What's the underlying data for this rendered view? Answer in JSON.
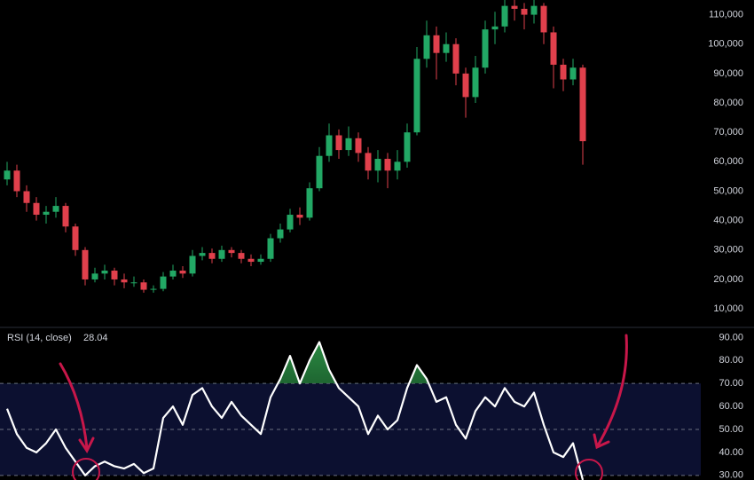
{
  "chart_data": [
    {
      "type": "candlestick",
      "open": [
        54000,
        57000,
        50000,
        46000,
        42000,
        43000,
        45000,
        38000,
        30000,
        20000,
        22000,
        23000,
        20000,
        19000,
        19000,
        16500,
        16800,
        21000,
        23000,
        22000,
        28000,
        29000,
        27000,
        30000,
        29000,
        27000,
        26000,
        27000,
        34000,
        37000,
        42000,
        41000,
        51000,
        62000,
        69000,
        64000,
        68000,
        63000,
        57000,
        61000,
        57000,
        60000,
        70000,
        95000,
        103000,
        97000,
        100000,
        90000,
        82000,
        92000,
        105000,
        106000,
        113000,
        112000,
        110000,
        113000,
        104000,
        93000,
        88000,
        92000
      ],
      "high": [
        60000,
        59000,
        52000,
        48000,
        45000,
        48000,
        46000,
        39000,
        31000,
        24000,
        25000,
        24000,
        22000,
        21000,
        20000,
        18000,
        22500,
        25000,
        24500,
        30000,
        31000,
        30500,
        31500,
        31000,
        30000,
        28500,
        28500,
        35500,
        39000,
        44000,
        44500,
        53000,
        65000,
        73000,
        71000,
        72000,
        70000,
        65000,
        64000,
        63000,
        64000,
        73000,
        99000,
        108000,
        106000,
        104000,
        102000,
        92000,
        96000,
        108000,
        111000,
        115000,
        115000,
        114000,
        115000,
        114000,
        106000,
        95000,
        95000,
        93000
      ],
      "low": [
        52000,
        48000,
        43000,
        40000,
        39000,
        41000,
        36000,
        28000,
        18000,
        19000,
        20000,
        18000,
        17000,
        17500,
        15500,
        15500,
        16000,
        20000,
        20500,
        21000,
        26500,
        25500,
        26000,
        27500,
        25500,
        24500,
        25000,
        26000,
        32500,
        36000,
        38500,
        40000,
        50000,
        60000,
        61000,
        62000,
        60000,
        54000,
        53000,
        51000,
        54000,
        58000,
        69000,
        92000,
        88000,
        94000,
        86000,
        75000,
        80000,
        90000,
        100000,
        104000,
        108000,
        105000,
        107000,
        100000,
        85000,
        84000,
        86000,
        59000
      ],
      "close": [
        57000,
        50000,
        46000,
        42000,
        43000,
        45000,
        38000,
        30000,
        20000,
        22000,
        23000,
        20000,
        19000,
        19000,
        16500,
        16800,
        21000,
        23000,
        22000,
        28000,
        29000,
        27000,
        30000,
        29000,
        27000,
        26000,
        27000,
        34000,
        37000,
        42000,
        41000,
        51000,
        62000,
        69000,
        64000,
        68000,
        63000,
        57000,
        61000,
        57000,
        60000,
        70000,
        95000,
        103000,
        97000,
        100000,
        90000,
        82000,
        92000,
        105000,
        106000,
        113000,
        112000,
        110000,
        113000,
        104000,
        93000,
        88000,
        92000,
        67000
      ],
      "up_color": "#22a865",
      "down_color": "#e0404c",
      "ylim": [
        4000,
        115000
      ],
      "yticks": [
        {
          "value": 10000,
          "label": "10,000"
        },
        {
          "value": 20000,
          "label": "20,000"
        },
        {
          "value": 30000,
          "label": "30,000"
        },
        {
          "value": 40000,
          "label": "40,000"
        },
        {
          "value": 50000,
          "label": "50,000"
        },
        {
          "value": 60000,
          "label": "60,000"
        },
        {
          "value": 70000,
          "label": "70,000"
        },
        {
          "value": 80000,
          "label": "80,000"
        },
        {
          "value": 90000,
          "label": "90,000"
        },
        {
          "value": 100000,
          "label": "100,000"
        },
        {
          "value": 110000,
          "label": "110,000"
        }
      ]
    },
    {
      "type": "line",
      "title": "RSI (14, close)",
      "color": "#ffffff",
      "values": [
        59,
        48,
        42,
        40,
        44,
        50,
        42,
        36,
        30,
        34,
        36,
        34,
        33,
        35,
        31,
        33,
        55,
        60,
        52,
        65,
        68,
        60,
        55,
        62,
        56,
        52,
        48,
        64,
        72,
        82,
        70,
        80,
        88,
        76,
        68,
        64,
        60,
        48,
        56,
        50,
        54,
        68,
        78,
        72,
        62,
        64,
        52,
        46,
        58,
        64,
        60,
        68,
        62,
        60,
        66,
        52,
        40,
        38,
        44,
        28.04
      ],
      "ylim": [
        28,
        94
      ],
      "yticks": [
        {
          "value": 30,
          "label": "30.00"
        },
        {
          "value": 40,
          "label": "40.00"
        },
        {
          "value": 50,
          "label": "50.00"
        },
        {
          "value": 60,
          "label": "60.00"
        },
        {
          "value": 70,
          "label": "70.00"
        },
        {
          "value": 80,
          "label": "80.00"
        },
        {
          "value": 90,
          "label": "90.00"
        }
      ],
      "levels": [
        30,
        50,
        70
      ],
      "band_color": "#0c1030",
      "overbought_color": "#1f7a3a"
    }
  ]
}
